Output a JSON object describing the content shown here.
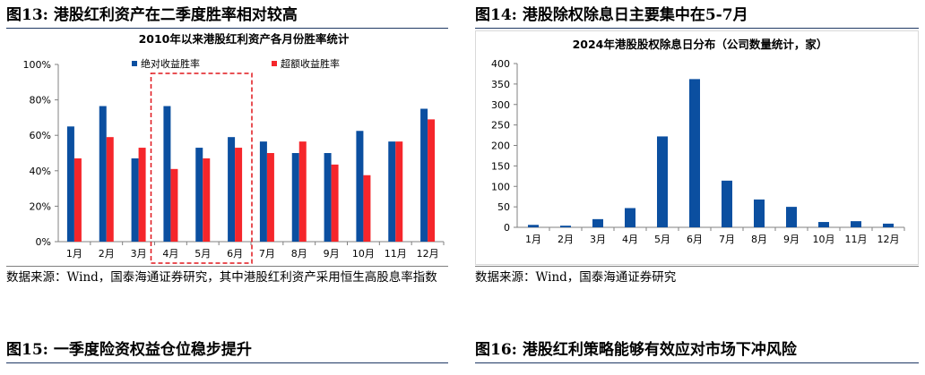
{
  "figures": {
    "fig13": {
      "title": "图13:  港股红利资产在二季度胜率相对较高",
      "source": "数据来源：Wind，国泰海通证券研究，其中港股红利资产采用恒生高股息率指数"
    },
    "fig14": {
      "title": "图14:  港股除权除息日主要集中在5-7月",
      "source": "数据来源：Wind，国泰海通证券研究"
    },
    "fig15": {
      "title": "图15:  一季度险资权益仓位稳步提升"
    },
    "fig16": {
      "title": "图16:  港股红利策略能够有效应对市场下冲风险"
    }
  },
  "chart_data": [
    {
      "type": "bar",
      "title": "2010年以来港股红利资产各月份胜率统计",
      "categories": [
        "1月",
        "2月",
        "3月",
        "4月",
        "5月",
        "6月",
        "7月",
        "8月",
        "9月",
        "10月",
        "11月",
        "12月"
      ],
      "series": [
        {
          "name": "绝对收益胜率",
          "color": "#0b4fa0",
          "values": [
            65,
            76.5,
            47,
            76.5,
            53,
            59,
            56.5,
            50,
            50,
            62.5,
            56.5,
            75
          ]
        },
        {
          "name": "超额收益胜率",
          "color": "#f5262b",
          "values": [
            47,
            59,
            53,
            41,
            47,
            53,
            50,
            56.5,
            43.5,
            37.5,
            56.5,
            69
          ]
        }
      ],
      "yticks": [
        "0%",
        "20%",
        "40%",
        "60%",
        "80%",
        "100%"
      ],
      "ylim": [
        0,
        100
      ],
      "legend_position": "top",
      "highlight": {
        "categories": [
          "4月",
          "5月",
          "6月"
        ],
        "color": "#e0161c",
        "style": "dashed"
      }
    },
    {
      "type": "bar",
      "title": "2024年港股股权除息日分布（公司数量统计，家）",
      "categories": [
        "1月",
        "2月",
        "3月",
        "4月",
        "5月",
        "6月",
        "7月",
        "8月",
        "9月",
        "10月",
        "11月",
        "12月"
      ],
      "series": [
        {
          "color": "#0b4fa0",
          "values": [
            6,
            4,
            20,
            47,
            222,
            362,
            114,
            68,
            50,
            13,
            15,
            9
          ]
        }
      ],
      "yticks": [
        "0",
        "50",
        "100",
        "150",
        "200",
        "250",
        "300",
        "350",
        "400"
      ],
      "ylim": [
        0,
        400
      ]
    }
  ]
}
